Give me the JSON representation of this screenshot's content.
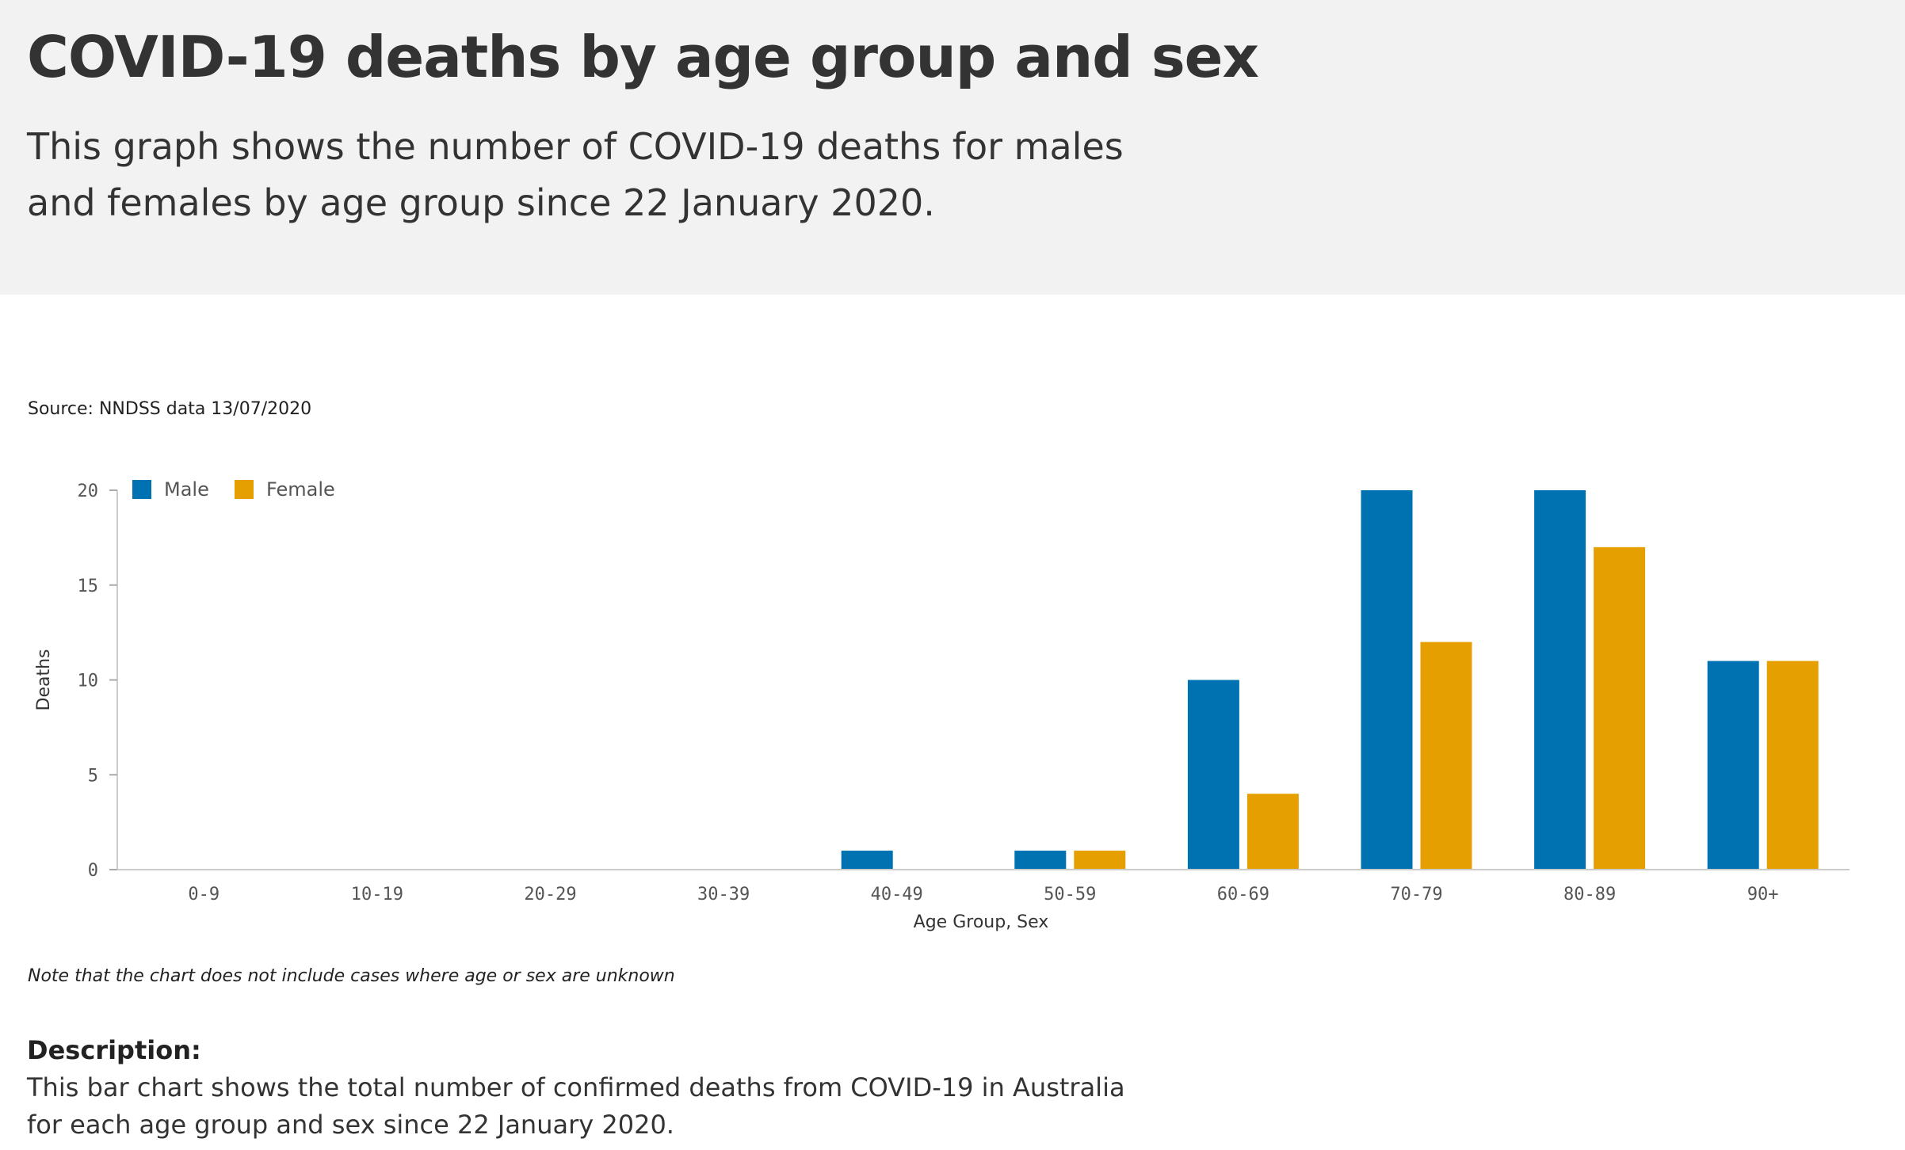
{
  "header": {
    "title": "COVID-19 deaths by age group and sex",
    "intro": "This graph shows the number of COVID-19 deaths for males and females by age group since 22 January 2020."
  },
  "source": "Source: NNDSS data 13/07/2020",
  "note": "Note that the chart does not include cases where age or sex are unknown",
  "description": {
    "heading": "Description:",
    "text": "This bar chart shows the total number of confirmed deaths from COVID-19 in Australia for each age group and sex since 22 January 2020."
  },
  "chart_data": {
    "type": "bar",
    "title": "",
    "xlabel": "Age Group, Sex",
    "ylabel": "Deaths",
    "ylim": [
      0,
      20
    ],
    "yticks": [
      0,
      5,
      10,
      15,
      20
    ],
    "grid": false,
    "legend_position": "top-left",
    "categories": [
      "0-9",
      "10-19",
      "20-29",
      "30-39",
      "40-49",
      "50-59",
      "60-69",
      "70-79",
      "80-89",
      "90+"
    ],
    "series": [
      {
        "name": "Male",
        "color": "#0072b2",
        "values": [
          0,
          0,
          0,
          0,
          1,
          1,
          10,
          20,
          20,
          11
        ]
      },
      {
        "name": "Female",
        "color": "#e69f00",
        "values": [
          0,
          0,
          0,
          0,
          0,
          1,
          4,
          12,
          17,
          11
        ]
      }
    ]
  }
}
